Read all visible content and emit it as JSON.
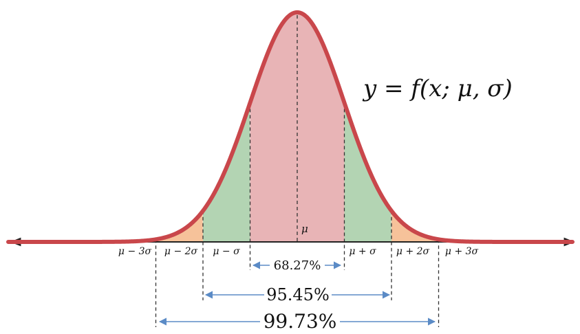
{
  "formula": "y = f(x; μ, σ)",
  "mean_label": "μ",
  "x_labels": [
    "μ − 3σ",
    "μ − 2σ",
    "μ − σ",
    "μ + σ",
    "μ + 2σ",
    "μ + 3σ"
  ],
  "intervals": [
    {
      "range": "±1σ",
      "percent": "68.27%"
    },
    {
      "range": "±2σ",
      "percent": "95.45%"
    },
    {
      "range": "±3σ",
      "percent": "99.73%"
    }
  ],
  "colors": {
    "curve": "#c9474b",
    "band_1sigma": "#e8b4b6",
    "band_2sigma": "#b3d4b3",
    "band_3sigma": "#f6c29a",
    "axis": "#222222",
    "dashed": "#333333",
    "arrows": "#5b8bc6"
  }
}
